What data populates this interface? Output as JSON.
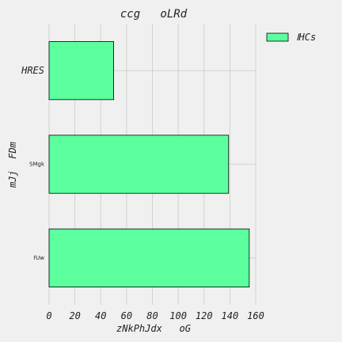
{
  "chart_data": {
    "type": "bar",
    "orientation": "horizontal",
    "title": "ccg   oLRd",
    "xlabel": "zNkPhJdx   oG",
    "ylabel": "mJj  FDm",
    "categories": [
      "HRES",
      "SMgk",
      "fUw"
    ],
    "series": [
      {
        "name": "ⅠHCs",
        "values": [
          50,
          139,
          155
        ],
        "color": "#5cff9e"
      }
    ],
    "xlim": [
      0,
      160
    ],
    "xticks": [
      "0",
      "20",
      "40",
      "60",
      "80",
      "100",
      "120",
      "140",
      "160"
    ],
    "grid": true,
    "legend_position": "top-right",
    "background": "#f0f0f0",
    "grid_color": "#cbcbcb",
    "edge_color": "#000000"
  }
}
